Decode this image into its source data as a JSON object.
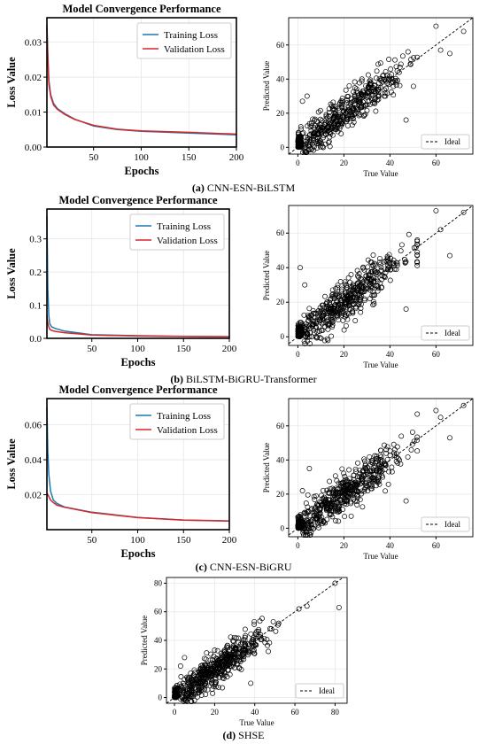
{
  "captions": [
    {
      "letter": "(a)",
      "text": " CNN-ESN-BiLSTM"
    },
    {
      "letter": "(b)",
      "text": " BiLSTM-BiGRU-Transformer"
    },
    {
      "letter": "(c)",
      "text": " CNN-ESN-BiGRU"
    },
    {
      "letter": "(d)",
      "text": " SHSE"
    }
  ],
  "colors": {
    "training": "#1f77b4",
    "validation": "#d62728",
    "points": "#000000",
    "ideal": "#000000",
    "grid": "#e6e6e6"
  },
  "chart_data": [
    {
      "type": "line",
      "title": "Model Convergence Performance",
      "xlabel": "Epochs",
      "ylabel": "Loss Value",
      "xlim": [
        1,
        200
      ],
      "ylim": [
        0,
        0.037
      ],
      "xticks": [
        50,
        100,
        150,
        200
      ],
      "yticks": [
        0.0,
        0.01,
        0.02,
        0.03
      ],
      "ytick_labels": [
        "0.00",
        "0.01",
        "0.02",
        "0.03"
      ],
      "legend": "top-right",
      "grid": true,
      "x": [
        1,
        2,
        3,
        5,
        8,
        12,
        20,
        30,
        50,
        75,
        100,
        150,
        200
      ],
      "series": [
        {
          "name": "Training Loss",
          "values": [
            0.035,
            0.026,
            0.019,
            0.015,
            0.0125,
            0.011,
            0.0095,
            0.008,
            0.006,
            0.005,
            0.0045,
            0.004,
            0.0035
          ]
        },
        {
          "name": "Validation Loss",
          "values": [
            0.034,
            0.025,
            0.018,
            0.0145,
            0.012,
            0.0108,
            0.0093,
            0.0079,
            0.0062,
            0.0051,
            0.0046,
            0.0042,
            0.0037
          ]
        }
      ]
    },
    {
      "type": "scatter",
      "xlabel": "True Value",
      "ylabel": "Predicted Value",
      "xlim": [
        -4,
        76
      ],
      "ylim": [
        -4,
        76
      ],
      "xticks": [
        0,
        20,
        40,
        60
      ],
      "yticks": [
        0,
        20,
        40,
        60
      ],
      "ideal_label": "Ideal",
      "legend": "bottom-right",
      "grid": true,
      "max_true": 72,
      "n_points": 520,
      "seed": 11,
      "outliers": [
        [
          60,
          71
        ],
        [
          62,
          57
        ],
        [
          66,
          55
        ],
        [
          72,
          68
        ],
        [
          47,
          16
        ],
        [
          2,
          27
        ],
        [
          4,
          30
        ]
      ]
    },
    {
      "type": "line",
      "title": "Model Convergence Performance",
      "xlabel": "Epochs",
      "ylabel": "Loss Value",
      "xlim": [
        1,
        200
      ],
      "ylim": [
        0,
        0.39
      ],
      "xticks": [
        50,
        100,
        150,
        200
      ],
      "yticks": [
        0.0,
        0.1,
        0.2,
        0.3
      ],
      "ytick_labels": [
        "0.0",
        "0.1",
        "0.2",
        "0.3"
      ],
      "legend": "top-right",
      "grid": true,
      "x": [
        1,
        2,
        3,
        4,
        6,
        10,
        20,
        50,
        100,
        150,
        200
      ],
      "series": [
        {
          "name": "Training Loss",
          "values": [
            0.37,
            0.15,
            0.07,
            0.045,
            0.035,
            0.03,
            0.022,
            0.011,
            0.008,
            0.006,
            0.005
          ]
        },
        {
          "name": "Validation Loss",
          "values": [
            0.07,
            0.045,
            0.035,
            0.028,
            0.024,
            0.021,
            0.017,
            0.01,
            0.007,
            0.0055,
            0.0048
          ]
        }
      ]
    },
    {
      "type": "scatter",
      "xlabel": "True Value",
      "ylabel": "Predicted Value",
      "xlim": [
        -4,
        76
      ],
      "ylim": [
        -5,
        76
      ],
      "xticks": [
        0,
        20,
        40,
        60
      ],
      "yticks": [
        0,
        20,
        40,
        60
      ],
      "ideal_label": "Ideal",
      "legend": "bottom-right",
      "grid": true,
      "max_true": 72,
      "n_points": 560,
      "seed": 23,
      "outliers": [
        [
          60,
          73
        ],
        [
          62,
          62
        ],
        [
          66,
          47
        ],
        [
          72,
          72
        ],
        [
          47,
          16
        ],
        [
          3,
          30
        ],
        [
          1,
          40
        ]
      ]
    },
    {
      "type": "line",
      "title": "Model Convergence Performance",
      "xlabel": "Epochs",
      "ylabel": "Loss Value",
      "xlim": [
        1,
        200
      ],
      "ylim": [
        0,
        0.075
      ],
      "xticks": [
        50,
        100,
        150,
        200
      ],
      "yticks": [
        0.02,
        0.04,
        0.06
      ],
      "ytick_labels": [
        "0.02",
        "0.04",
        "0.06"
      ],
      "legend": "top-right",
      "grid": true,
      "x": [
        1,
        2,
        3,
        5,
        8,
        12,
        20,
        30,
        50,
        75,
        100,
        150,
        200
      ],
      "series": [
        {
          "name": "Training Loss",
          "values": [
            0.07,
            0.045,
            0.032,
            0.022,
            0.017,
            0.015,
            0.013,
            0.012,
            0.01,
            0.0085,
            0.007,
            0.0055,
            0.005
          ]
        },
        {
          "name": "Validation Loss",
          "values": [
            0.021,
            0.02,
            0.019,
            0.017,
            0.0155,
            0.014,
            0.0128,
            0.0118,
            0.0098,
            0.0083,
            0.0069,
            0.0054,
            0.0049
          ]
        }
      ]
    },
    {
      "type": "scatter",
      "xlabel": "True Value",
      "ylabel": "Predicted Value",
      "xlim": [
        -4,
        76
      ],
      "ylim": [
        -5,
        76
      ],
      "xticks": [
        0,
        20,
        40,
        60
      ],
      "yticks": [
        0,
        20,
        40,
        60
      ],
      "ideal_label": "Ideal",
      "legend": "bottom-right",
      "grid": true,
      "max_true": 72,
      "n_points": 560,
      "seed": 37,
      "outliers": [
        [
          60,
          69
        ],
        [
          62,
          65
        ],
        [
          66,
          53
        ],
        [
          72,
          72
        ],
        [
          47,
          16
        ],
        [
          2,
          22
        ],
        [
          5,
          35
        ]
      ]
    },
    {
      "type": "scatter",
      "xlabel": "True Value",
      "ylabel": "Predicted Value",
      "xlim": [
        -4,
        86
      ],
      "ylim": [
        -4,
        84
      ],
      "xticks": [
        0,
        20,
        40,
        60,
        80
      ],
      "yticks": [
        0,
        20,
        40,
        60,
        80
      ],
      "ideal_label": "Ideal",
      "legend": "bottom-right",
      "grid": true,
      "max_true": 82,
      "n_points": 600,
      "seed": 53,
      "outliers": [
        [
          62,
          62
        ],
        [
          66,
          64
        ],
        [
          82,
          63
        ],
        [
          80,
          80
        ],
        [
          38,
          10
        ],
        [
          3,
          22
        ],
        [
          5,
          28
        ]
      ]
    }
  ]
}
